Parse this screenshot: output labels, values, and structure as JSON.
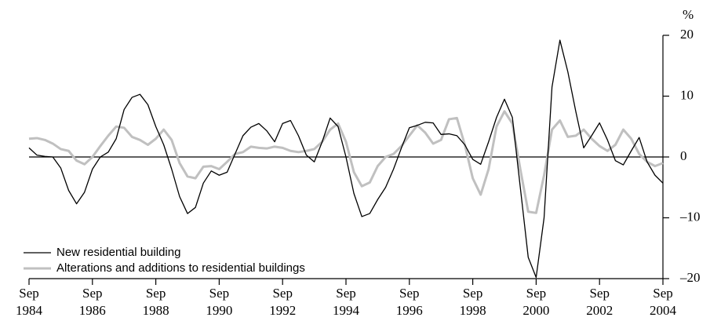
{
  "chart_data": {
    "type": "line",
    "y_unit": "%",
    "categories": [
      "Sep\n1984",
      null,
      null,
      null,
      null,
      null,
      null,
      null,
      "Sep\n1986",
      null,
      null,
      null,
      null,
      null,
      null,
      null,
      "Sep\n1988",
      null,
      null,
      null,
      null,
      null,
      null,
      null,
      "Sep\n1990",
      null,
      null,
      null,
      null,
      null,
      null,
      null,
      "Sep\n1992",
      null,
      null,
      null,
      null,
      null,
      null,
      null,
      "Sep\n1994",
      null,
      null,
      null,
      null,
      null,
      null,
      null,
      "Sep\n1996",
      null,
      null,
      null,
      null,
      null,
      null,
      null,
      "Sep\n1998",
      null,
      null,
      null,
      null,
      null,
      null,
      null,
      "Sep\n2000",
      null,
      null,
      null,
      null,
      null,
      null,
      null,
      "Sep\n2002",
      null,
      null,
      null,
      null,
      null,
      null,
      null,
      "Sep\n2004"
    ],
    "series": [
      {
        "name": "New residential building",
        "color": "#000000",
        "width": 1.3,
        "values": [
          1.5,
          0.3,
          0.1,
          0,
          -1.8,
          -5.5,
          -7.7,
          -5.8,
          -2,
          0,
          0.8,
          3,
          7.8,
          9.8,
          10.3,
          8.6,
          5,
          2,
          -2,
          -6.5,
          -9.3,
          -8.3,
          -4.3,
          -2.3,
          -3,
          -2.5,
          0.5,
          3.5,
          4.9,
          5.5,
          4.3,
          2.5,
          5.5,
          6,
          3.5,
          0.3,
          -0.8,
          2.5,
          6.4,
          5,
          0,
          -6,
          -9.8,
          -9.3,
          -7,
          -5,
          -2,
          1.5,
          4.8,
          5.2,
          5.7,
          5.6,
          3.7,
          3.8,
          3.5,
          2,
          -0.4,
          -1.2,
          2.5,
          6.5,
          9.5,
          6.5,
          -5,
          -16.5,
          -19.8,
          -10,
          11.5,
          19.2,
          14,
          7.5,
          1.5,
          3.5,
          5.6,
          2.8,
          -0.6,
          -1.3,
          1,
          3.2,
          -0.8,
          -3,
          -4.3
        ]
      },
      {
        "name": "Alterations and additions to residential buildings",
        "color": "#c0c0c0",
        "width": 3,
        "values": [
          3,
          3.1,
          2.8,
          2.2,
          1.3,
          1,
          -0.6,
          -1.2,
          0,
          1.8,
          3.5,
          5,
          4.8,
          3.3,
          2.8,
          2,
          3,
          4.5,
          2.8,
          -1,
          -3.2,
          -3.5,
          -1.6,
          -1.5,
          -2,
          -0.8,
          0.5,
          0.8,
          1.7,
          1.5,
          1.4,
          1.7,
          1.5,
          1,
          0.8,
          1,
          1.3,
          2.5,
          4.5,
          5.5,
          2.5,
          -2.5,
          -4.8,
          -4.2,
          -1.5,
          0,
          0.5,
          1.8,
          3.5,
          5.2,
          4,
          2.2,
          2.8,
          6.2,
          6.4,
          2,
          -3.5,
          -6.2,
          -2,
          5,
          7.5,
          5.5,
          -2,
          -9,
          -9.2,
          -3,
          4.5,
          6,
          3.3,
          3.5,
          4.5,
          3,
          1.8,
          1,
          2,
          4.5,
          3,
          0.5,
          -0.8,
          -1.5,
          -1
        ]
      }
    ],
    "ylim": [
      -20,
      20
    ],
    "yticks": [
      {
        "value": -20,
        "label": "–20"
      },
      {
        "value": -10,
        "label": "–10"
      },
      0,
      10,
      20
    ],
    "zero_line": true,
    "legend": "bottom-left"
  }
}
